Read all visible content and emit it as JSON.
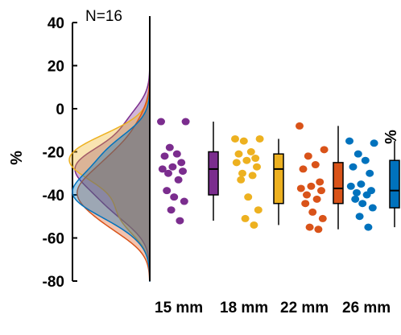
{
  "chart_data": {
    "type": "scatter",
    "annotation": "N=16",
    "ylabel": "%",
    "ylabel_right": "%",
    "ylim": [
      -80,
      40
    ],
    "yticks": [
      40,
      20,
      0,
      -20,
      -40,
      -60,
      -80
    ],
    "categories": [
      "15 mm",
      "18 mm",
      "22 mm",
      "26 mm"
    ],
    "series": [
      {
        "label": "15 mm",
        "color": "#7B2D8E",
        "points": [
          -6,
          -6,
          -18,
          -21,
          -22,
          -25,
          -27,
          -28,
          -29,
          -30,
          -33,
          -38,
          -41,
          -43,
          -47,
          -52
        ],
        "box": {
          "whisker_low": -52,
          "q1": -40,
          "median": -28,
          "q3": -20,
          "whisker_high": -6
        }
      },
      {
        "label": "18 mm",
        "color": "#EDB120",
        "points": [
          -14,
          -14,
          -15,
          -20,
          -21,
          -23,
          -24,
          -25,
          -27,
          -30,
          -31,
          -33,
          -41,
          -47,
          -51,
          -54
        ],
        "box": {
          "whisker_low": -54,
          "q1": -44,
          "median": -28,
          "q3": -21,
          "whisker_high": -14
        }
      },
      {
        "label": "22 mm",
        "color": "#D95319",
        "points": [
          -8,
          -19,
          -22,
          -26,
          -28,
          -34,
          -36,
          -37,
          -38,
          -40,
          -42,
          -44,
          -48,
          -51,
          -55,
          -56
        ],
        "box": {
          "whisker_low": -56,
          "q1": -44,
          "median": -37,
          "q3": -25,
          "whisker_high": -8
        }
      },
      {
        "label": "26 mm",
        "color": "#0072BD",
        "points": [
          -15,
          -16,
          -21,
          -24,
          -27,
          -30,
          -35,
          -36,
          -38,
          -39,
          -40,
          -42,
          -44,
          -46,
          -50,
          -55
        ],
        "box": {
          "whisker_low": -55,
          "q1": -46,
          "median": -38,
          "q3": -24,
          "whisker_high": -15
        }
      }
    ]
  }
}
